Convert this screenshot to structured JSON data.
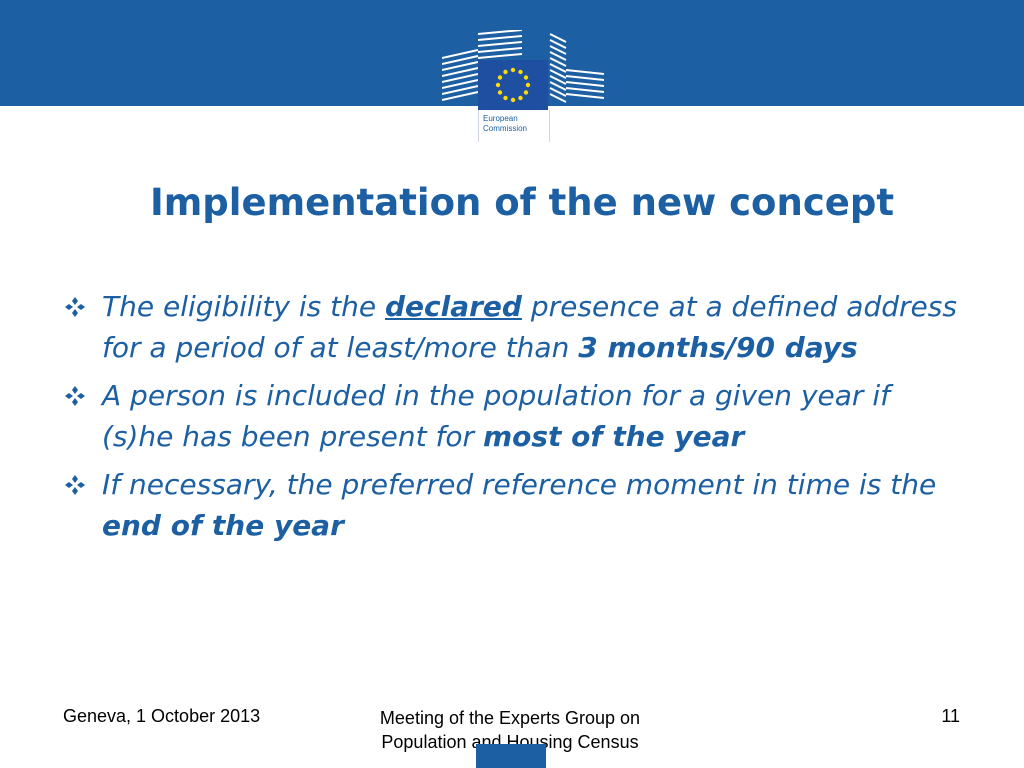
{
  "slide": {
    "title": "Implementation of the new concept",
    "logo": {
      "icon": "european-commission-logo-icon",
      "line1": "European",
      "line2": "Commission"
    },
    "bullets": [
      {
        "parts": [
          {
            "text": "The eligibility is the ",
            "style": "normal"
          },
          {
            "text": "declared",
            "style": "bold-underline"
          },
          {
            "text": " presence at a defined address for a period of at least/more than ",
            "style": "normal"
          },
          {
            "text": "3 months/90 days",
            "style": "bold"
          }
        ]
      },
      {
        "parts": [
          {
            "text": "A person is included in the population for a given year if (s)he has been present for ",
            "style": "normal"
          },
          {
            "text": "most of the year",
            "style": "bold"
          }
        ]
      },
      {
        "parts": [
          {
            "text": "If necessary, the preferred reference moment in time is the ",
            "style": "normal"
          },
          {
            "text": "end of the year",
            "style": "bold"
          }
        ]
      }
    ]
  },
  "footer": {
    "left": "Geneva, 1 October 2013",
    "center_line1": "Meeting of the Experts Group on",
    "center_line2": "Population and Housing Census",
    "page_number": "11"
  },
  "colors": {
    "brand_blue": "#1c5fa3",
    "flag_blue": "#1f4fa0",
    "star_yellow": "#ffdd00"
  }
}
